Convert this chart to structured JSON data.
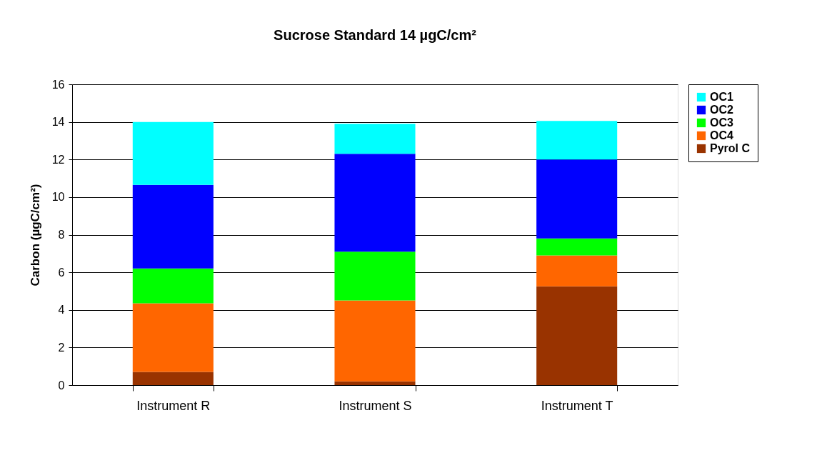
{
  "chart_data": {
    "type": "bar",
    "title": "Sucrose Standard 14 µgC/cm²",
    "ylabel": "Carbon (µgC/cm²)",
    "categories": [
      "Instrument R",
      "Instrument S",
      "Instrument T"
    ],
    "stacked": true,
    "series": [
      {
        "name": "Pyrol C",
        "color": "#993300",
        "values": [
          0.7,
          0.2,
          5.25
        ]
      },
      {
        "name": "OC4",
        "color": "#ff6600",
        "values": [
          3.65,
          4.3,
          1.65
        ]
      },
      {
        "name": "OC3",
        "color": "#00ff00",
        "values": [
          1.85,
          2.6,
          0.9
        ]
      },
      {
        "name": "OC2",
        "color": "#0000ff",
        "values": [
          4.45,
          5.2,
          4.2
        ]
      },
      {
        "name": "OC1",
        "color": "#00ffff",
        "values": [
          3.35,
          1.6,
          2.05
        ]
      }
    ],
    "ylim": [
      0,
      16
    ],
    "yticks": [
      0,
      2,
      4,
      6,
      8,
      10,
      12,
      14,
      16
    ],
    "grid": "y",
    "legend": "right"
  }
}
